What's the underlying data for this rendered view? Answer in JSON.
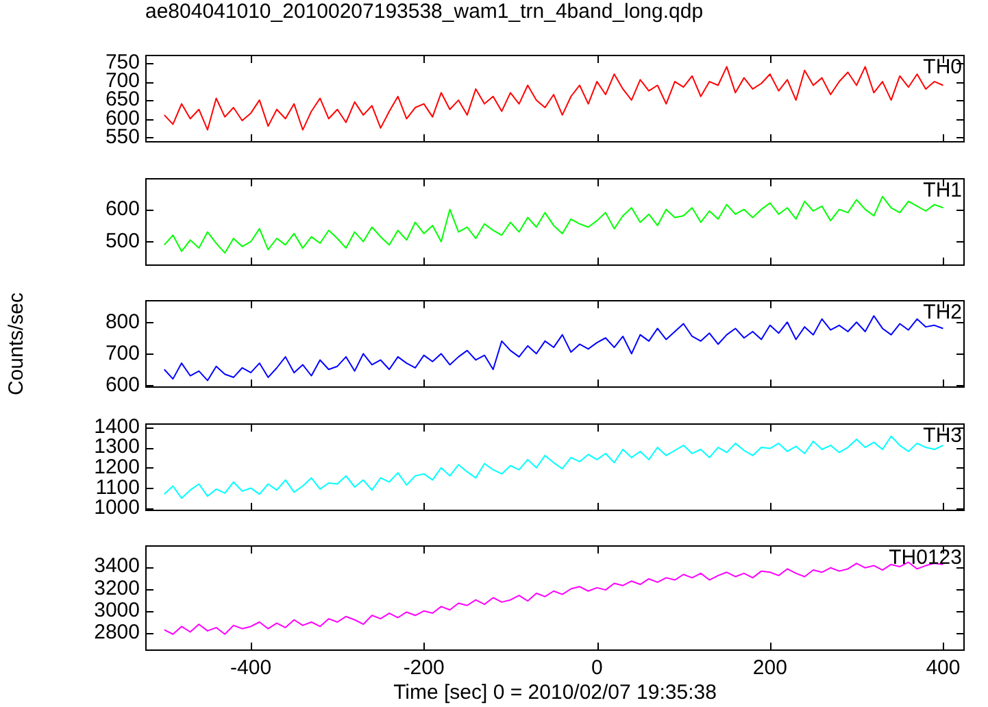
{
  "chart_data": [
    {
      "type": "line",
      "title": "ae804041010_20100207193538_wam1_trn_4band_long.qdp",
      "annotations": [
        "TH0"
      ],
      "tick_labels": "y",
      "x": [
        -500,
        -490,
        -480,
        -470,
        -460,
        -450,
        -440,
        -430,
        -420,
        -410,
        -400,
        -390,
        -380,
        -370,
        -360,
        -350,
        -340,
        -330,
        -320,
        -310,
        -300,
        -290,
        -280,
        -270,
        -260,
        -250,
        -240,
        -230,
        -220,
        -210,
        -200,
        -190,
        -180,
        -170,
        -160,
        -150,
        -140,
        -130,
        -120,
        -110,
        -100,
        -90,
        -80,
        -70,
        -60,
        -50,
        -40,
        -30,
        -20,
        -10,
        0,
        10,
        20,
        30,
        40,
        50,
        60,
        70,
        80,
        90,
        100,
        110,
        120,
        130,
        140,
        150,
        160,
        170,
        180,
        190,
        200,
        210,
        220,
        230,
        240,
        250,
        260,
        270,
        280,
        290,
        300,
        310,
        320,
        330,
        340,
        350,
        360,
        370,
        380,
        390,
        400
      ],
      "xlim": [
        -522,
        425
      ],
      "xticks": [
        -400,
        -200,
        0,
        200,
        400
      ],
      "ylim": [
        536,
        772
      ],
      "yticks": [
        550,
        600,
        650,
        700,
        750
      ],
      "series": [
        {
          "color": "#ff0000",
          "values": [
            610,
            585,
            640,
            600,
            625,
            570,
            655,
            605,
            630,
            595,
            615,
            650,
            580,
            625,
            600,
            640,
            570,
            620,
            655,
            600,
            625,
            590,
            645,
            610,
            635,
            575,
            620,
            660,
            600,
            630,
            640,
            605,
            670,
            625,
            650,
            610,
            680,
            640,
            660,
            620,
            670,
            640,
            690,
            650,
            630,
            665,
            610,
            660,
            690,
            640,
            700,
            665,
            720,
            680,
            650,
            705,
            675,
            690,
            640,
            700,
            685,
            715,
            660,
            700,
            690,
            740,
            670,
            710,
            680,
            695,
            720,
            675,
            705,
            650,
            730,
            690,
            710,
            665,
            700,
            725,
            690,
            740,
            670,
            700,
            650,
            715,
            685,
            720,
            680,
            700,
            690
          ]
        }
      ]
    },
    {
      "type": "line",
      "annotations": [
        "TH1"
      ],
      "tick_labels": "y",
      "x": [
        -500,
        -490,
        -480,
        -470,
        -460,
        -450,
        -440,
        -430,
        -420,
        -410,
        -400,
        -390,
        -380,
        -370,
        -360,
        -350,
        -340,
        -330,
        -320,
        -310,
        -300,
        -290,
        -280,
        -270,
        -260,
        -250,
        -240,
        -230,
        -220,
        -210,
        -200,
        -190,
        -180,
        -170,
        -160,
        -150,
        -140,
        -130,
        -120,
        -110,
        -100,
        -90,
        -80,
        -70,
        -60,
        -50,
        -40,
        -30,
        -20,
        -10,
        0,
        10,
        20,
        30,
        40,
        50,
        60,
        70,
        80,
        90,
        100,
        110,
        120,
        130,
        140,
        150,
        160,
        170,
        180,
        190,
        200,
        210,
        220,
        230,
        240,
        250,
        260,
        270,
        280,
        290,
        300,
        310,
        320,
        330,
        340,
        350,
        360,
        370,
        380,
        390,
        400
      ],
      "xlim": [
        -522,
        425
      ],
      "xticks": [
        -400,
        -200,
        0,
        200,
        400
      ],
      "ylim": [
        425,
        697
      ],
      "yticks": [
        500,
        600
      ],
      "series": [
        {
          "color": "#00ff00",
          "values": [
            490,
            520,
            470,
            505,
            480,
            530,
            495,
            465,
            510,
            485,
            500,
            540,
            475,
            510,
            490,
            525,
            480,
            515,
            495,
            535,
            510,
            480,
            530,
            500,
            545,
            515,
            490,
            535,
            505,
            560,
            525,
            550,
            500,
            600,
            530,
            545,
            510,
            555,
            535,
            520,
            560,
            530,
            575,
            545,
            590,
            550,
            525,
            570,
            555,
            545,
            565,
            590,
            540,
            580,
            605,
            560,
            585,
            550,
            600,
            575,
            580,
            605,
            560,
            595,
            570,
            615,
            585,
            600,
            575,
            600,
            620,
            585,
            605,
            570,
            625,
            595,
            610,
            565,
            600,
            590,
            630,
            600,
            580,
            640,
            605,
            590,
            625,
            610,
            595,
            615,
            605
          ]
        }
      ]
    },
    {
      "type": "line",
      "ylabel": "Counts/sec",
      "annotations": [
        "TH2"
      ],
      "tick_labels": "y",
      "x": [
        -500,
        -490,
        -480,
        -470,
        -460,
        -450,
        -440,
        -430,
        -420,
        -410,
        -400,
        -390,
        -380,
        -370,
        -360,
        -350,
        -340,
        -330,
        -320,
        -310,
        -300,
        -290,
        -280,
        -270,
        -260,
        -250,
        -240,
        -230,
        -220,
        -210,
        -200,
        -190,
        -180,
        -170,
        -160,
        -150,
        -140,
        -130,
        -120,
        -110,
        -100,
        -90,
        -80,
        -70,
        -60,
        -50,
        -40,
        -30,
        -20,
        -10,
        0,
        10,
        20,
        30,
        40,
        50,
        60,
        70,
        80,
        90,
        100,
        110,
        120,
        130,
        140,
        150,
        160,
        170,
        180,
        190,
        200,
        210,
        220,
        230,
        240,
        250,
        260,
        270,
        280,
        290,
        300,
        310,
        320,
        330,
        340,
        350,
        360,
        370,
        380,
        390,
        400
      ],
      "xlim": [
        -522,
        425
      ],
      "xticks": [
        -400,
        -200,
        0,
        200,
        400
      ],
      "ylim": [
        592,
        870
      ],
      "yticks": [
        600,
        700,
        800
      ],
      "series": [
        {
          "color": "#0000ff",
          "values": [
            650,
            620,
            670,
            630,
            645,
            615,
            660,
            635,
            625,
            655,
            640,
            670,
            625,
            655,
            690,
            640,
            665,
            630,
            680,
            650,
            660,
            690,
            645,
            700,
            665,
            680,
            650,
            690,
            670,
            655,
            695,
            675,
            700,
            665,
            690,
            710,
            680,
            695,
            650,
            740,
            710,
            690,
            725,
            700,
            740,
            720,
            760,
            705,
            730,
            715,
            735,
            750,
            720,
            755,
            700,
            760,
            740,
            780,
            745,
            770,
            795,
            755,
            740,
            765,
            730,
            760,
            780,
            750,
            770,
            745,
            790,
            765,
            800,
            745,
            785,
            760,
            810,
            775,
            790,
            770,
            800,
            770,
            820,
            780,
            760,
            795,
            775,
            810,
            785,
            790,
            780
          ]
        }
      ]
    },
    {
      "type": "line",
      "annotations": [
        "TH3"
      ],
      "tick_labels": "y",
      "x": [
        -500,
        -490,
        -480,
        -470,
        -460,
        -450,
        -440,
        -430,
        -420,
        -410,
        -400,
        -390,
        -380,
        -370,
        -360,
        -350,
        -340,
        -330,
        -320,
        -310,
        -300,
        -290,
        -280,
        -270,
        -260,
        -250,
        -240,
        -230,
        -220,
        -210,
        -200,
        -190,
        -180,
        -170,
        -160,
        -150,
        -140,
        -130,
        -120,
        -110,
        -100,
        -90,
        -80,
        -70,
        -60,
        -50,
        -40,
        -30,
        -20,
        -10,
        0,
        10,
        20,
        30,
        40,
        50,
        60,
        70,
        80,
        90,
        100,
        110,
        120,
        130,
        140,
        150,
        160,
        170,
        180,
        190,
        200,
        210,
        220,
        230,
        240,
        250,
        260,
        270,
        280,
        290,
        300,
        310,
        320,
        330,
        340,
        350,
        360,
        370,
        380,
        390,
        400
      ],
      "xlim": [
        -522,
        425
      ],
      "xticks": [
        -400,
        -200,
        0,
        200,
        400
      ],
      "ylim": [
        987,
        1418
      ],
      "yticks": [
        1000,
        1100,
        1200,
        1300,
        1400
      ],
      "series": [
        {
          "color": "#00ffff",
          "values": [
            1070,
            1110,
            1050,
            1090,
            1120,
            1060,
            1095,
            1075,
            1130,
            1085,
            1100,
            1070,
            1120,
            1090,
            1140,
            1080,
            1110,
            1150,
            1095,
            1125,
            1120,
            1160,
            1105,
            1140,
            1090,
            1150,
            1130,
            1175,
            1115,
            1160,
            1170,
            1140,
            1200,
            1160,
            1215,
            1180,
            1150,
            1220,
            1190,
            1170,
            1210,
            1190,
            1240,
            1200,
            1260,
            1225,
            1195,
            1250,
            1230,
            1265,
            1240,
            1270,
            1225,
            1290,
            1250,
            1280,
            1240,
            1300,
            1260,
            1285,
            1310,
            1270,
            1290,
            1250,
            1300,
            1275,
            1320,
            1285,
            1260,
            1300,
            1295,
            1320,
            1280,
            1305,
            1270,
            1330,
            1290,
            1310,
            1275,
            1300,
            1340,
            1300,
            1325,
            1290,
            1355,
            1310,
            1280,
            1320,
            1300,
            1290,
            1310
          ]
        }
      ]
    },
    {
      "type": "line",
      "xlabel": "Time [sec] 0 = 2010/02/07 19:35:38",
      "annotations": [
        "TH0123"
      ],
      "x": [
        -500,
        -490,
        -480,
        -470,
        -460,
        -450,
        -440,
        -430,
        -420,
        -410,
        -400,
        -390,
        -380,
        -370,
        -360,
        -350,
        -340,
        -330,
        -320,
        -310,
        -300,
        -290,
        -280,
        -270,
        -260,
        -250,
        -240,
        -230,
        -220,
        -210,
        -200,
        -190,
        -180,
        -170,
        -160,
        -150,
        -140,
        -130,
        -120,
        -110,
        -100,
        -90,
        -80,
        -70,
        -60,
        -50,
        -40,
        -30,
        -20,
        -10,
        0,
        10,
        20,
        30,
        40,
        50,
        60,
        70,
        80,
        90,
        100,
        110,
        120,
        130,
        140,
        150,
        160,
        170,
        180,
        190,
        200,
        210,
        220,
        230,
        240,
        250,
        260,
        270,
        280,
        290,
        300,
        310,
        320,
        330,
        340,
        350,
        360,
        370,
        380,
        390,
        400
      ],
      "xlim": [
        -522,
        425
      ],
      "xticks": [
        -400,
        -200,
        0,
        200,
        400
      ],
      "ylim": [
        2640,
        3593
      ],
      "yticks": [
        2800,
        3000,
        3200,
        3400
      ],
      "series": [
        {
          "color": "#ff00ff",
          "values": [
            2830,
            2790,
            2860,
            2810,
            2880,
            2820,
            2850,
            2790,
            2870,
            2840,
            2860,
            2900,
            2840,
            2890,
            2850,
            2920,
            2870,
            2900,
            2860,
            2930,
            2900,
            2950,
            2920,
            2880,
            2960,
            2930,
            2980,
            2940,
            2990,
            2960,
            3000,
            2980,
            3040,
            3010,
            3070,
            3050,
            3100,
            3060,
            3120,
            3080,
            3100,
            3140,
            3090,
            3160,
            3130,
            3180,
            3150,
            3200,
            3220,
            3180,
            3210,
            3190,
            3250,
            3230,
            3270,
            3240,
            3290,
            3260,
            3300,
            3280,
            3330,
            3300,
            3340,
            3280,
            3320,
            3350,
            3310,
            3340,
            3300,
            3360,
            3350,
            3320,
            3380,
            3340,
            3310,
            3370,
            3350,
            3390,
            3360,
            3380,
            3430,
            3390,
            3410,
            3370,
            3420,
            3400,
            3440,
            3380,
            3410,
            3430,
            3420
          ]
        }
      ]
    }
  ]
}
